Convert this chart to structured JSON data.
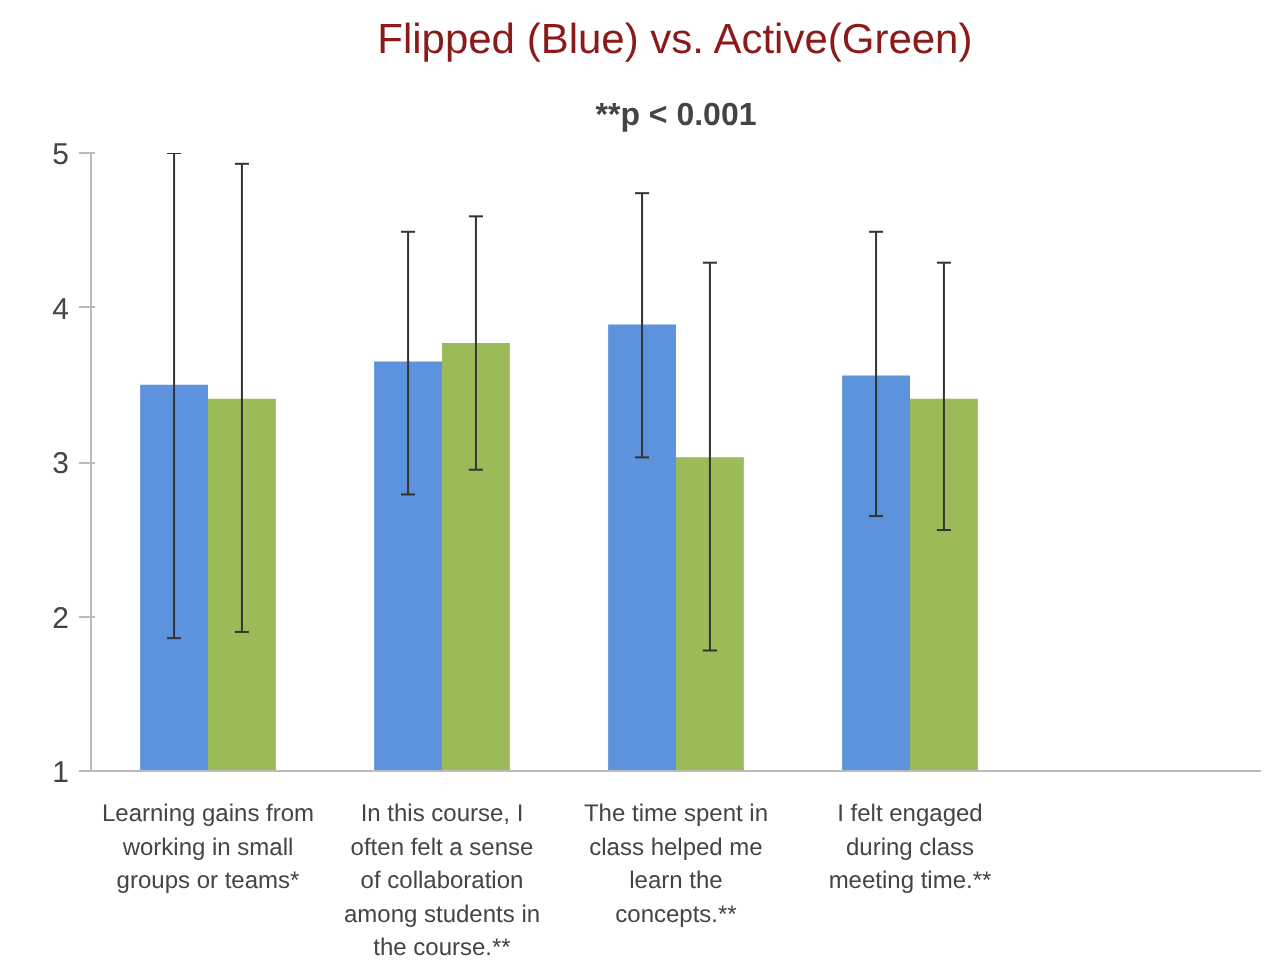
{
  "chart_data": {
    "type": "bar",
    "title": "Flipped (Blue) vs. Active(Green)",
    "categories": [
      "Learning gains from working in small groups or teams*",
      "In this course, I often felt a sense of collaboration among students in the course.**",
      "The time spent in class helped me learn the concepts.**",
      "I felt engaged during class meeting time.**",
      null
    ],
    "series": [
      {
        "color": "#5d93dc",
        "values": [
          3.5,
          3.65,
          3.89,
          3.56,
          null
        ],
        "errors": [
          [
            1.86,
            5.0
          ],
          [
            2.79,
            4.49
          ],
          [
            3.03,
            4.74
          ],
          [
            2.65,
            4.49
          ],
          null
        ]
      },
      {
        "color": "#9bbb59",
        "values": [
          3.41,
          3.77,
          3.03,
          3.41,
          null
        ],
        "errors": [
          [
            1.9,
            4.93
          ],
          [
            2.95,
            4.59
          ],
          [
            1.78,
            4.29
          ],
          [
            2.56,
            4.29
          ],
          null
        ]
      }
    ],
    "ylim": [
      1,
      5
    ],
    "yticks": [
      1,
      2,
      3,
      4,
      5
    ],
    "grid": false,
    "annotations": [
      "**p < 0.001"
    ]
  }
}
